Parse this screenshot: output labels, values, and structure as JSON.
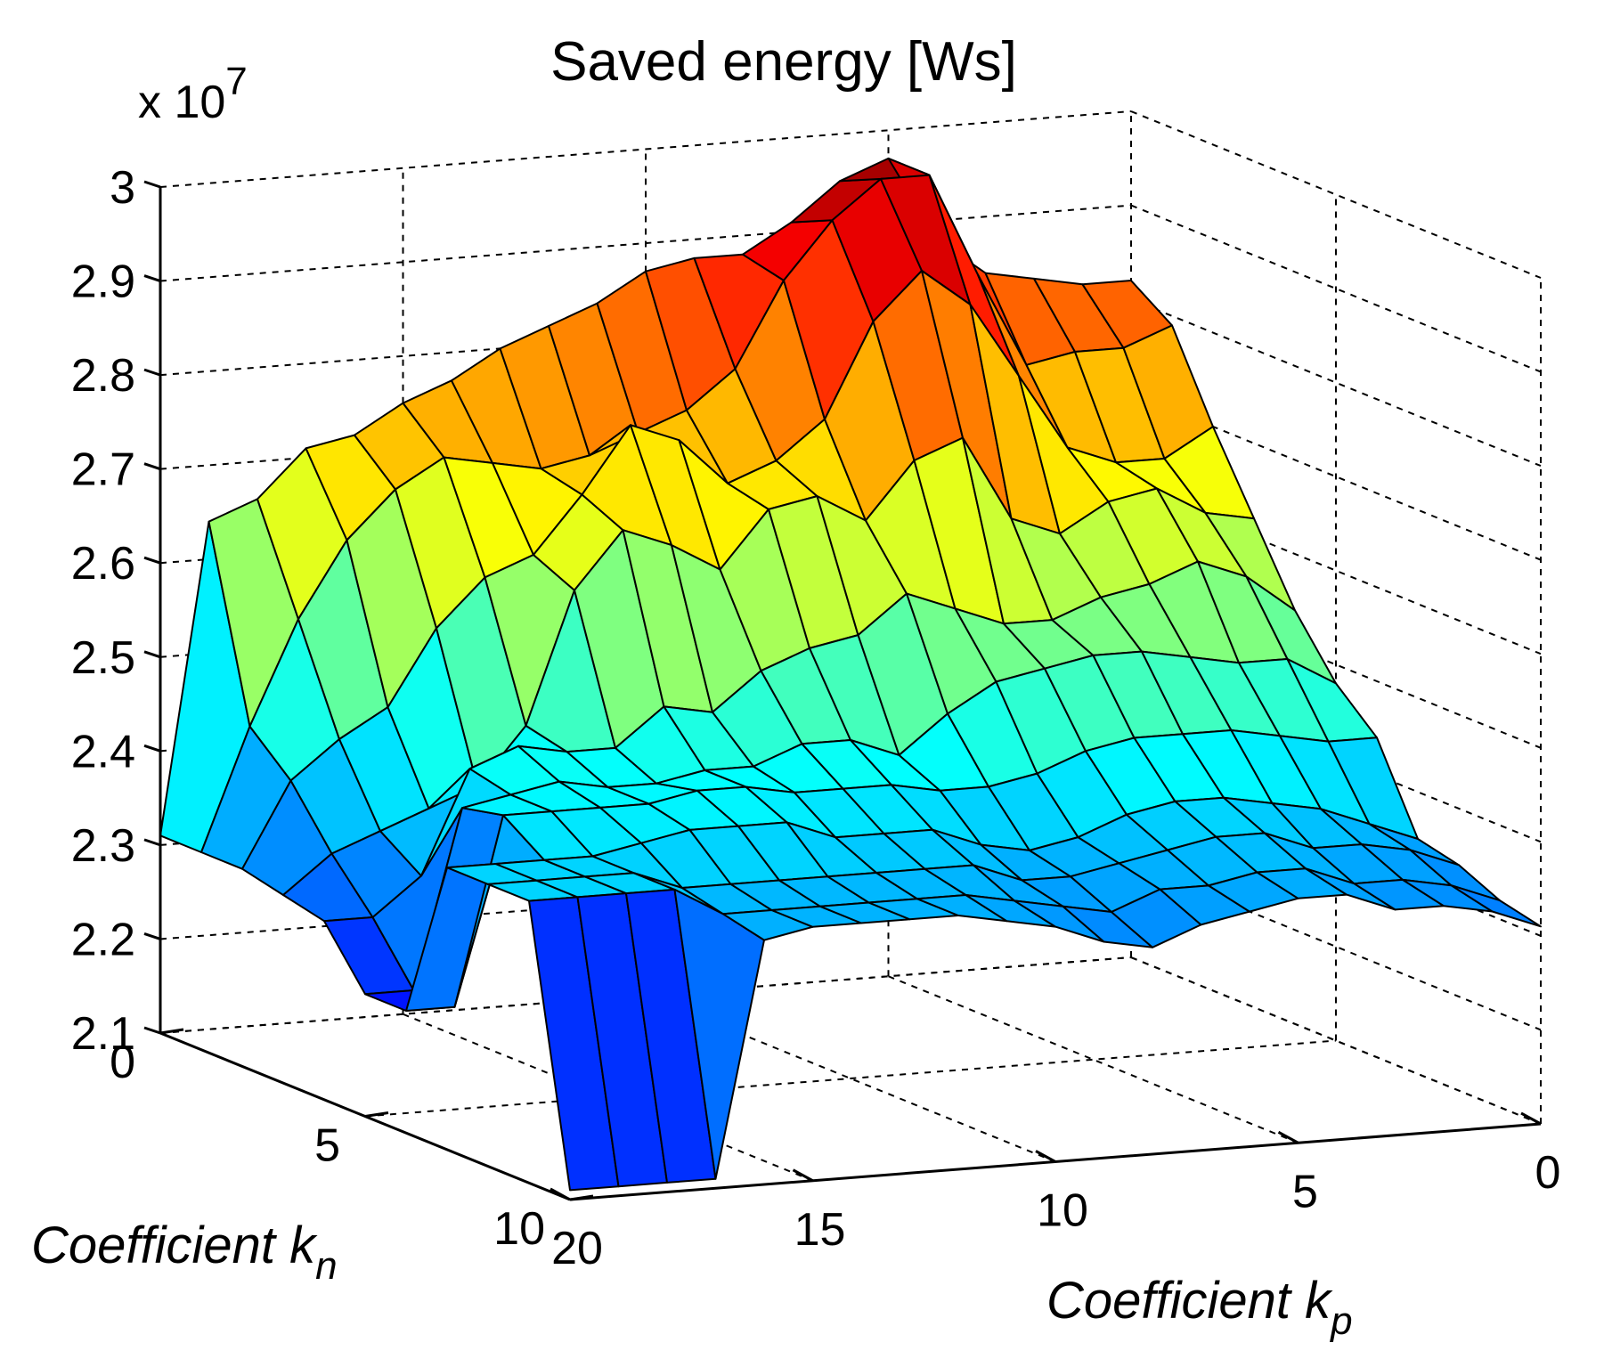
{
  "chart_data": {
    "type": "surface3d",
    "title": "Saved energy [Ws]",
    "zlabel_multiplier": "x 10",
    "zlabel_exponent": "7",
    "xlabel": "Coefficient k",
    "xlabel_sub": "n",
    "ylabel": "Coefficient k",
    "ylabel_sub": "p",
    "xlim": [
      0,
      10
    ],
    "ylim": [
      0,
      20
    ],
    "zlim": [
      2.1,
      3.0
    ],
    "x_ticks": [
      "0",
      "5",
      "10"
    ],
    "y_ticks": [
      "20",
      "15",
      "10",
      "5",
      "0"
    ],
    "z_ticks": [
      "2.1",
      "2.2",
      "2.3",
      "2.4",
      "2.5",
      "2.6",
      "2.7",
      "2.8",
      "2.9",
      "3"
    ],
    "z_unit_scale": 10000000,
    "kn": [
      0,
      1,
      2,
      3,
      4,
      5,
      6,
      7,
      8,
      9,
      10
    ],
    "kp": [
      0,
      1,
      2,
      3,
      4,
      5,
      6,
      7,
      8,
      9,
      10,
      11,
      12,
      13,
      14,
      15,
      16,
      17,
      18,
      19,
      20
    ],
    "z": [
      [
        2.82,
        2.82,
        2.83,
        2.84,
        2.88,
        2.97,
        2.95,
        2.91,
        2.88,
        2.88,
        2.87,
        2.84,
        2.82,
        2.8,
        2.77,
        2.75,
        2.72,
        2.71,
        2.66,
        2.64,
        2.31
      ],
      [
        2.79,
        2.77,
        2.77,
        2.76,
        2.86,
        2.97,
        2.97,
        2.93,
        2.87,
        2.78,
        2.74,
        2.72,
        2.7,
        2.69,
        2.7,
        2.71,
        2.68,
        2.63,
        2.55,
        2.44,
        2.31
      ],
      [
        2.7,
        2.67,
        2.67,
        2.69,
        2.77,
        2.85,
        2.89,
        2.84,
        2.74,
        2.7,
        2.68,
        2.73,
        2.75,
        2.68,
        2.62,
        2.6,
        2.55,
        2.47,
        2.44,
        2.4,
        2.31
      ],
      [
        2.62,
        2.63,
        2.66,
        2.65,
        2.62,
        2.64,
        2.73,
        2.71,
        2.65,
        2.68,
        2.67,
        2.61,
        2.64,
        2.66,
        2.6,
        2.46,
        2.4,
        2.38,
        2.36,
        2.34,
        2.3
      ],
      [
        2.54,
        2.58,
        2.6,
        2.58,
        2.57,
        2.55,
        2.55,
        2.57,
        2.59,
        2.55,
        2.54,
        2.52,
        2.48,
        2.49,
        2.45,
        2.45,
        2.46,
        2.44,
        2.33,
        2.29,
        2.29
      ],
      [
        2.48,
        2.51,
        2.51,
        2.52,
        2.53,
        2.53,
        2.52,
        2.51,
        2.48,
        2.44,
        2.46,
        2.46,
        2.44,
        2.44,
        2.43,
        2.43,
        2.44,
        2.43,
        2.42,
        2.23,
        2.23
      ],
      [
        2.44,
        2.44,
        2.45,
        2.46,
        2.46,
        2.46,
        2.45,
        2.43,
        2.42,
        2.42,
        2.43,
        2.43,
        2.43,
        2.44,
        2.44,
        2.43,
        2.43,
        2.43,
        2.43,
        2.23,
        2.23
      ],
      [
        2.35,
        2.37,
        2.39,
        2.4,
        2.41,
        2.41,
        2.4,
        2.38,
        2.37,
        2.38,
        2.4,
        2.4,
        2.4,
        2.42,
        2.42,
        2.42,
        2.41,
        2.4,
        2.4,
        2.4,
        2.4
      ],
      [
        2.34,
        2.36,
        2.37,
        2.37,
        2.39,
        2.39,
        2.38,
        2.37,
        2.36,
        2.36,
        2.38,
        2.38,
        2.38,
        2.38,
        2.38,
        2.38,
        2.38,
        2.4,
        2.4,
        2.4,
        2.4
      ],
      [
        2.32,
        2.34,
        2.35,
        2.35,
        2.37,
        2.37,
        2.36,
        2.36,
        2.34,
        2.35,
        2.36,
        2.37,
        2.37,
        2.37,
        2.37,
        2.37,
        2.37,
        2.4,
        2.4,
        2.4,
        2.4
      ],
      [
        2.31,
        2.33,
        2.34,
        2.34,
        2.36,
        2.36,
        2.35,
        2.34,
        2.32,
        2.33,
        2.35,
        2.36,
        2.37,
        2.37,
        2.37,
        2.37,
        2.36,
        2.11,
        2.11,
        2.11,
        2.11
      ]
    ]
  }
}
